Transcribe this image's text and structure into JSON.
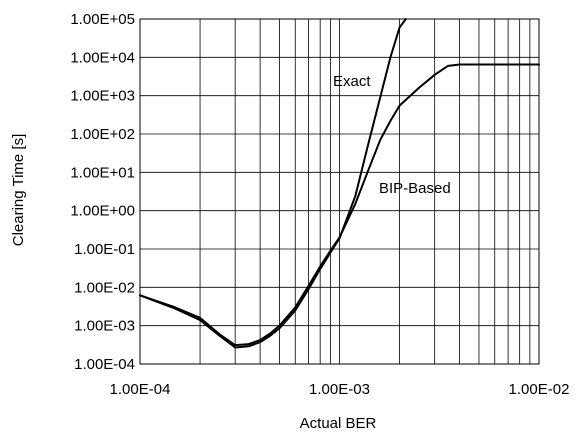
{
  "chart_data": {
    "type": "line",
    "title": "",
    "xlabel": "Actual BER",
    "ylabel": "Clearing Time  [s]",
    "xscale": "log",
    "yscale": "log",
    "xlim": [
      0.0001,
      0.01
    ],
    "ylim": [
      0.0001,
      100000
    ],
    "grid": true,
    "x_ticks": [
      {
        "value": 0.0001,
        "label": "1.00E-04"
      },
      {
        "value": 0.001,
        "label": "1.00E-03"
      },
      {
        "value": 0.01,
        "label": "1.00E-02"
      }
    ],
    "y_ticks": [
      {
        "value": 100000,
        "label": "1.00E+05"
      },
      {
        "value": 10000,
        "label": "1.00E+04"
      },
      {
        "value": 1000,
        "label": "1.00E+03"
      },
      {
        "value": 100,
        "label": "1.00E+02"
      },
      {
        "value": 10,
        "label": "1.00E+01"
      },
      {
        "value": 1,
        "label": "1.00E+00"
      },
      {
        "value": 0.1,
        "label": "1.00E-01"
      },
      {
        "value": 0.01,
        "label": "1.00E-02"
      },
      {
        "value": 0.001,
        "label": "1.00E-03"
      },
      {
        "value": 0.0001,
        "label": "1.00E-04"
      }
    ],
    "series": [
      {
        "name": "Exact",
        "points": [
          [
            0.0001,
            0.0062
          ],
          [
            0.00015,
            0.0028
          ],
          [
            0.0002,
            0.0014
          ],
          [
            0.00025,
            0.00055
          ],
          [
            0.0003,
            0.00027
          ],
          [
            0.00035,
            0.00029
          ],
          [
            0.0004,
            0.00037
          ],
          [
            0.00045,
            0.00055
          ],
          [
            0.0005,
            0.00085
          ],
          [
            0.0006,
            0.0025
          ],
          [
            0.0007,
            0.009
          ],
          [
            0.0008,
            0.03
          ],
          [
            0.0009,
            0.08
          ],
          [
            0.001,
            0.19
          ],
          [
            0.0012,
            2.4
          ],
          [
            0.0014,
            60
          ],
          [
            0.0016,
            900
          ],
          [
            0.0018,
            10000
          ],
          [
            0.002,
            60000
          ],
          [
            0.00215,
            100000
          ]
        ]
      },
      {
        "name": "BIP-Based",
        "points": [
          [
            0.0001,
            0.0062
          ],
          [
            0.00015,
            0.003
          ],
          [
            0.0002,
            0.0016
          ],
          [
            0.00025,
            0.0006
          ],
          [
            0.0003,
            0.00031
          ],
          [
            0.00035,
            0.00033
          ],
          [
            0.0004,
            0.00042
          ],
          [
            0.00045,
            0.00063
          ],
          [
            0.0005,
            0.001
          ],
          [
            0.0006,
            0.003
          ],
          [
            0.0007,
            0.011
          ],
          [
            0.0008,
            0.035
          ],
          [
            0.0009,
            0.09
          ],
          [
            0.001,
            0.2
          ],
          [
            0.0012,
            1.5
          ],
          [
            0.0014,
            12
          ],
          [
            0.0016,
            70
          ],
          [
            0.0018,
            220
          ],
          [
            0.002,
            550
          ],
          [
            0.0025,
            1600
          ],
          [
            0.003,
            3500
          ],
          [
            0.0035,
            6000
          ],
          [
            0.004,
            6500
          ],
          [
            0.005,
            6500
          ],
          [
            0.007,
            6500
          ],
          [
            0.01,
            6500
          ]
        ]
      }
    ]
  }
}
